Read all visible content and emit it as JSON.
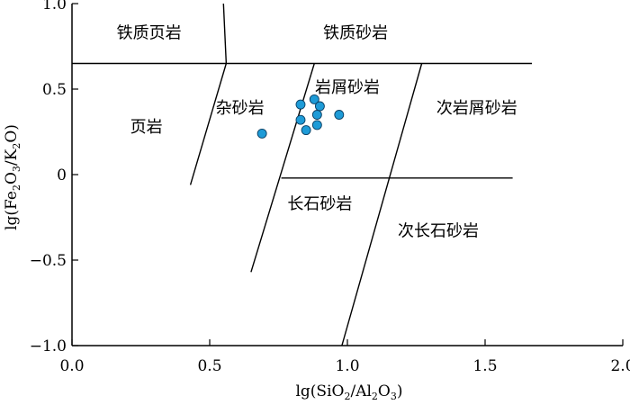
{
  "chart_data": {
    "type": "scatter",
    "title": "",
    "xlabel": "lg(SiO2/Al2O3)",
    "ylabel": "lg(Fe2O3/K2O)",
    "xlim": [
      0.0,
      2.0
    ],
    "ylim": [
      -1.0,
      1.0
    ],
    "x_ticks": [
      "0.0",
      "0.5",
      "1.0",
      "1.5",
      "2.0"
    ],
    "y_ticks": [
      "1.0",
      "0.5",
      "0",
      "−0.5",
      "−1.0"
    ],
    "x_tick_values": [
      0.0,
      0.5,
      1.0,
      1.5,
      2.0
    ],
    "y_tick_values": [
      1.0,
      0.5,
      0.0,
      -0.5,
      -1.0
    ],
    "grid": false,
    "marker_color": "#1e9bd7",
    "region_labels": [
      {
        "text": "铁质页岩",
        "x": 0.28,
        "y": 0.83
      },
      {
        "text": "铁质砂岩",
        "x": 1.03,
        "y": 0.83
      },
      {
        "text": "页岩",
        "x": 0.27,
        "y": 0.28
      },
      {
        "text": "杂砂岩",
        "x": 0.61,
        "y": 0.39
      },
      {
        "text": "岩屑砂岩",
        "x": 1.0,
        "y": 0.51
      },
      {
        "text": "次岩屑砂岩",
        "x": 1.47,
        "y": 0.39
      },
      {
        "text": "长石砂岩",
        "x": 0.9,
        "y": -0.17
      },
      {
        "text": "次长石砂岩",
        "x": 1.33,
        "y": -0.33
      }
    ],
    "boundary_lines": [
      [
        [
          0.55,
          1.0
        ],
        [
          0.56,
          0.65
        ]
      ],
      [
        [
          0.0,
          0.65
        ],
        [
          1.67,
          0.65
        ]
      ],
      [
        [
          0.56,
          0.65
        ],
        [
          0.43,
          -0.06
        ]
      ],
      [
        [
          0.88,
          0.65
        ],
        [
          0.65,
          -0.57
        ]
      ],
      [
        [
          1.27,
          0.65
        ],
        [
          0.98,
          -1.0
        ]
      ],
      [
        [
          0.76,
          -0.02
        ],
        [
          1.6,
          -0.02
        ]
      ]
    ],
    "points": [
      {
        "x": 0.69,
        "y": 0.24
      },
      {
        "x": 0.83,
        "y": 0.41
      },
      {
        "x": 0.83,
        "y": 0.32
      },
      {
        "x": 0.85,
        "y": 0.26
      },
      {
        "x": 0.88,
        "y": 0.44
      },
      {
        "x": 0.9,
        "y": 0.4
      },
      {
        "x": 0.89,
        "y": 0.35
      },
      {
        "x": 0.89,
        "y": 0.29
      },
      {
        "x": 0.97,
        "y": 0.35
      }
    ]
  }
}
